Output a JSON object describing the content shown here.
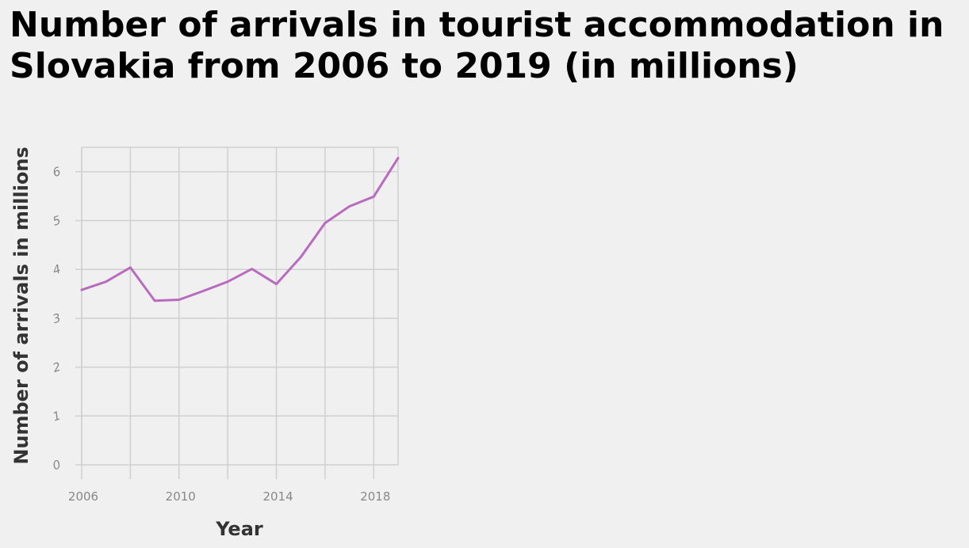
{
  "chart_data": {
    "type": "line",
    "title": "Number of arrivals in tourist accommodation in Slovakia from 2006 to 2019 (in millions)",
    "xlabel": "Year",
    "ylabel": "Number of arrivals in millions",
    "x": [
      2006,
      2007,
      2008,
      2009,
      2010,
      2011,
      2012,
      2013,
      2014,
      2015,
      2016,
      2017,
      2018,
      2019
    ],
    "series": [
      {
        "values": [
          3.58,
          3.75,
          4.04,
          3.36,
          3.38,
          3.56,
          3.75,
          4.01,
          3.7,
          4.25,
          4.95,
          5.29,
          5.49,
          6.28
        ]
      }
    ],
    "xticks": [
      2006,
      2010,
      2014,
      2018
    ],
    "yticks": [
      0,
      1,
      2,
      3,
      4,
      5,
      6
    ],
    "xlim": [
      2006,
      2019
    ],
    "ylim": [
      0,
      6.5
    ],
    "grid": true,
    "legend": "none",
    "colors": {
      "line": "#b86bbf",
      "grid": "#d0d0d0",
      "background": "#f0f0f0"
    }
  }
}
